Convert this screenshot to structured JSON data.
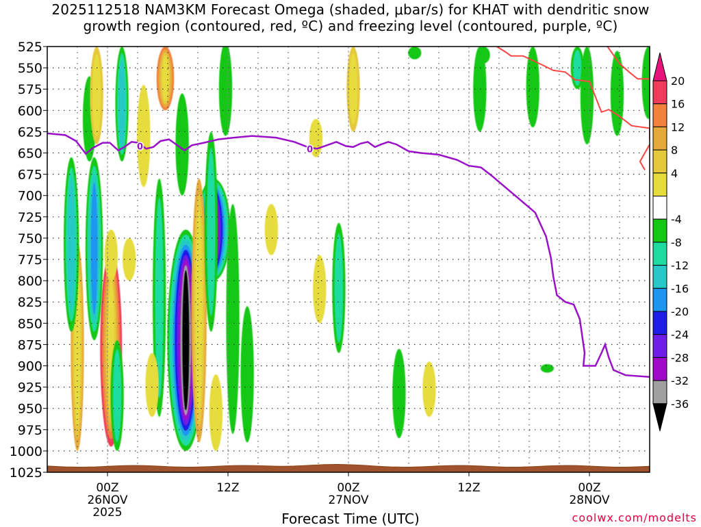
{
  "title": {
    "line1": "2025112518 NAM3KM Forecast Omega (shaded, μbar/s) for KHAT with dendritic snow",
    "line2": "growth region (contoured, red, ºC) and freezing level (contoured, purple, ºC)"
  },
  "credit": "coolwx.com/modelts",
  "chart_data": {
    "type": "heatmap",
    "title": "2025112518 NAM3KM Forecast Omega (shaded, μbar/s) for KHAT with dendritic snow growth region (contoured, red, ºC) and freezing level (contoured, purple, ºC)",
    "xlabel": "Forecast Time (UTC)",
    "ylabel": "",
    "x_range_hours": [
      -5,
      45
    ],
    "y_range_hpa": [
      525,
      1025
    ],
    "y_scale": "pressure",
    "y_ticks": [
      "525",
      "550",
      "575",
      "600",
      "625",
      "650",
      "675",
      "700",
      "725",
      "750",
      "775",
      "800",
      "825",
      "850",
      "875",
      "900",
      "925",
      "950",
      "975",
      "1000",
      "1025"
    ],
    "x_ticks": [
      {
        "hour": 0,
        "label": "00Z",
        "sub": "26NOV",
        "sub2": "2025"
      },
      {
        "hour": 10,
        "label": "12Z",
        "sub": "",
        "sub2": ""
      },
      {
        "hour": 20,
        "label": "00Z",
        "sub": "27NOV",
        "sub2": ""
      },
      {
        "hour": 30,
        "label": "12Z",
        "sub": "",
        "sub2": ""
      },
      {
        "hour": 40,
        "label": "00Z",
        "sub": "28NOV",
        "sub2": ""
      }
    ],
    "grid": true,
    "colorbar": {
      "labels": [
        "20",
        "16",
        "12",
        "8",
        "4",
        "-4",
        "-8",
        "-12",
        "-16",
        "-20",
        "-24",
        "-28",
        "-32",
        "-36"
      ],
      "colors": [
        "#f03c5a",
        "#f0823c",
        "#e6aa3c",
        "#e6c83c",
        "#e6dc3c",
        "#ffffff",
        "#14c814",
        "#1edca0",
        "#28c8c8",
        "#1e96f0",
        "#1e1ee6",
        "#6e1ee6",
        "#a00ac8",
        "#a0a0a0"
      ],
      "top_color": "#e6147a",
      "bottom_color": "#000000"
    },
    "freezing_level": {
      "name": "freezing level",
      "color": "#9a10c8",
      "label": "0",
      "points": [
        [
          -5,
          627
        ],
        [
          -3.5,
          629
        ],
        [
          -2.6,
          636
        ],
        [
          -1.8,
          651
        ],
        [
          -1.2,
          644
        ],
        [
          -0.4,
          638
        ],
        [
          0.2,
          638
        ],
        [
          0.9,
          647
        ],
        [
          1.4,
          643
        ],
        [
          2,
          637
        ],
        [
          2.6,
          638
        ],
        [
          3.2,
          645
        ],
        [
          3.8,
          643
        ],
        [
          4.4,
          636
        ],
        [
          5.1,
          634
        ],
        [
          5.8,
          641
        ],
        [
          6.4,
          647
        ],
        [
          7,
          641
        ],
        [
          8,
          638
        ],
        [
          9.2,
          634
        ],
        [
          10.5,
          632
        ],
        [
          12,
          630
        ],
        [
          14,
          632
        ],
        [
          15.5,
          637
        ],
        [
          16.6,
          643
        ],
        [
          17.4,
          645
        ],
        [
          18.2,
          641
        ],
        [
          19,
          637
        ],
        [
          19.8,
          642
        ],
        [
          20.4,
          643
        ],
        [
          21,
          639
        ],
        [
          21.6,
          637
        ],
        [
          22.2,
          643
        ],
        [
          22.7,
          640
        ],
        [
          23.3,
          637
        ],
        [
          24,
          640
        ],
        [
          25,
          648
        ],
        [
          26,
          650
        ],
        [
          27.5,
          652
        ],
        [
          29,
          658
        ],
        [
          30,
          665
        ],
        [
          31,
          667
        ],
        [
          32,
          678
        ],
        [
          33,
          690
        ],
        [
          34,
          702
        ],
        [
          35.5,
          720
        ],
        [
          36.4,
          748
        ],
        [
          36.8,
          773
        ],
        [
          37,
          795
        ],
        [
          37.3,
          817
        ],
        [
          38,
          825
        ],
        [
          38.7,
          828
        ],
        [
          39.2,
          845
        ],
        [
          39.6,
          885
        ],
        [
          39.5,
          900
        ],
        [
          40.5,
          900
        ],
        [
          41,
          885
        ],
        [
          41.3,
          875
        ],
        [
          41.6,
          890
        ],
        [
          42,
          905
        ],
        [
          43,
          911
        ],
        [
          45,
          913
        ]
      ]
    },
    "dgz_contour": {
      "name": "dendritic snow growth region",
      "color": "#ff4444",
      "lines": [
        [
          [
            32.3,
            525
          ],
          [
            33,
            531
          ],
          [
            33.5,
            536
          ],
          [
            34.5,
            536
          ],
          [
            36,
            546
          ],
          [
            37,
            553
          ],
          [
            38,
            555
          ],
          [
            38.8,
            564
          ],
          [
            40,
            566
          ],
          [
            40.5,
            584
          ],
          [
            41,
            602
          ],
          [
            41.6,
            599
          ],
          [
            42.5,
            607
          ],
          [
            43.5,
            618
          ],
          [
            45,
            621
          ],
          [
            45,
            635
          ]
        ],
        [
          [
            41.5,
            525
          ],
          [
            42.5,
            545
          ],
          [
            43.3,
            555
          ],
          [
            44,
            563
          ],
          [
            45,
            563
          ]
        ],
        [
          [
            45,
            640
          ],
          [
            44.2,
            660
          ],
          [
            44.6,
            670
          ]
        ]
      ]
    },
    "omega_features": [
      {
        "hour": -2.5,
        "p_top": 755,
        "p_bot": 1000,
        "v": 12
      },
      {
        "hour": 0.3,
        "p_top": 765,
        "p_bot": 995,
        "v": 20
      },
      {
        "hour": 4.8,
        "p_top": 525,
        "p_bot": 600,
        "v": 16
      },
      {
        "hour": 6.5,
        "p_top": 740,
        "p_bot": 1000,
        "v": -36
      },
      {
        "hour": 8.8,
        "p_top": 680,
        "p_bot": 800,
        "v": -32
      }
    ]
  }
}
